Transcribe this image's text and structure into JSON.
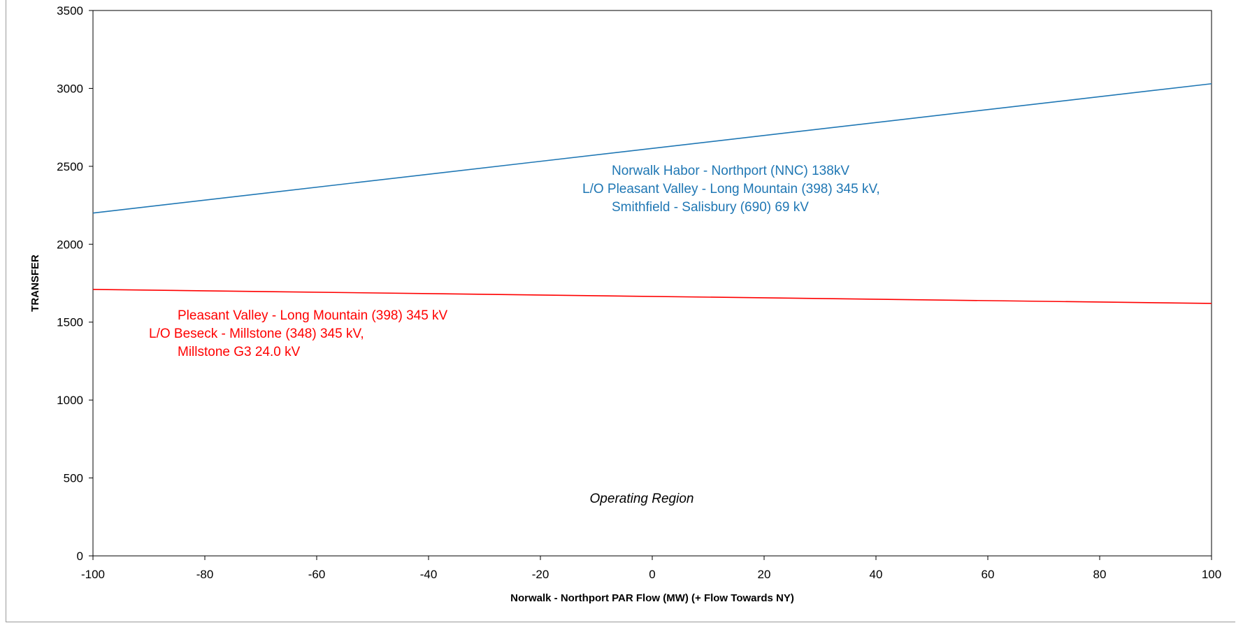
{
  "chart_data": {
    "type": "line",
    "xlabel": "Norwalk - Northport PAR Flow (MW) (+ Flow Towards NY)",
    "ylabel": "TRANSFER",
    "xlim": [
      -100,
      100
    ],
    "ylim": [
      0,
      3500
    ],
    "x_ticks": [
      -100,
      -80,
      -60,
      -40,
      -20,
      0,
      20,
      40,
      60,
      80,
      100
    ],
    "y_ticks": [
      0,
      500,
      1000,
      1500,
      2000,
      2500,
      3000,
      3500
    ],
    "grid": false,
    "series": [
      {
        "x": [
          -100,
          100
        ],
        "values": [
          2200,
          3030
        ],
        "color": "#1f77b4",
        "label_lines": [
          "Norwalk  Habor - Northport (NNC)  138kV",
          "L/O Pleasant  Valley - Long Mountain  (398)  345  kV,",
          "Smithfield - Salisbury  (690)  69 kV"
        ]
      },
      {
        "x": [
          -100,
          100
        ],
        "values": [
          1710,
          1620
        ],
        "color": "#ff0000",
        "label_lines": [
          "Pleasant  Valley - Long Mountain  (398)  345  kV",
          "L/O Beseck - Millstone (348)  345  kV,",
          "Millstone G3  24.0  kV"
        ]
      }
    ],
    "annotations": [
      "Operating Region"
    ]
  }
}
